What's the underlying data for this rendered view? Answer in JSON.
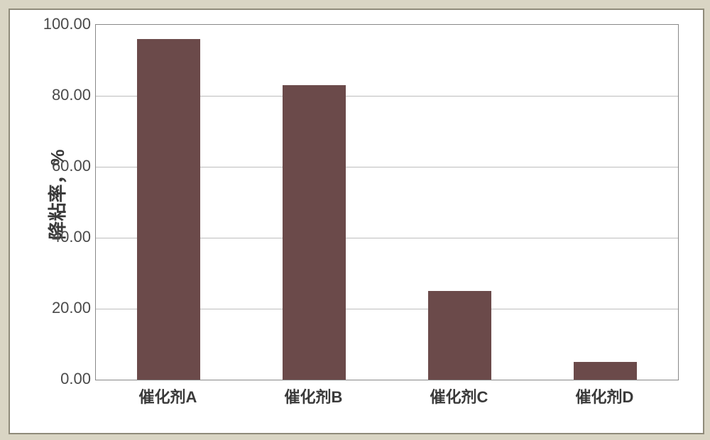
{
  "chart": {
    "type": "bar",
    "ylabel": "降粘率，%",
    "label_fontsize": 26,
    "tick_fontsize": 22,
    "background_color": "#ffffff",
    "frame_bg": "#d9d5c4",
    "frame_border": "#8f8b7a",
    "grid_color": "#bdbdbd",
    "axis_color": "#888888",
    "bar_color": "#6b4a4a",
    "ylim": [
      0,
      100
    ],
    "ytick_step": 20,
    "yticks": [
      {
        "v": 0,
        "label": "0.00"
      },
      {
        "v": 20,
        "label": "20.00"
      },
      {
        "v": 40,
        "label": "40.00"
      },
      {
        "v": 60,
        "label": "60.00"
      },
      {
        "v": 80,
        "label": "80.00"
      },
      {
        "v": 100,
        "label": "100.00"
      }
    ],
    "bar_width": 0.43,
    "categories": [
      "催化剂A",
      "催化剂B",
      "催化剂C",
      "催化剂D"
    ],
    "values": [
      96,
      83,
      25,
      5
    ]
  }
}
